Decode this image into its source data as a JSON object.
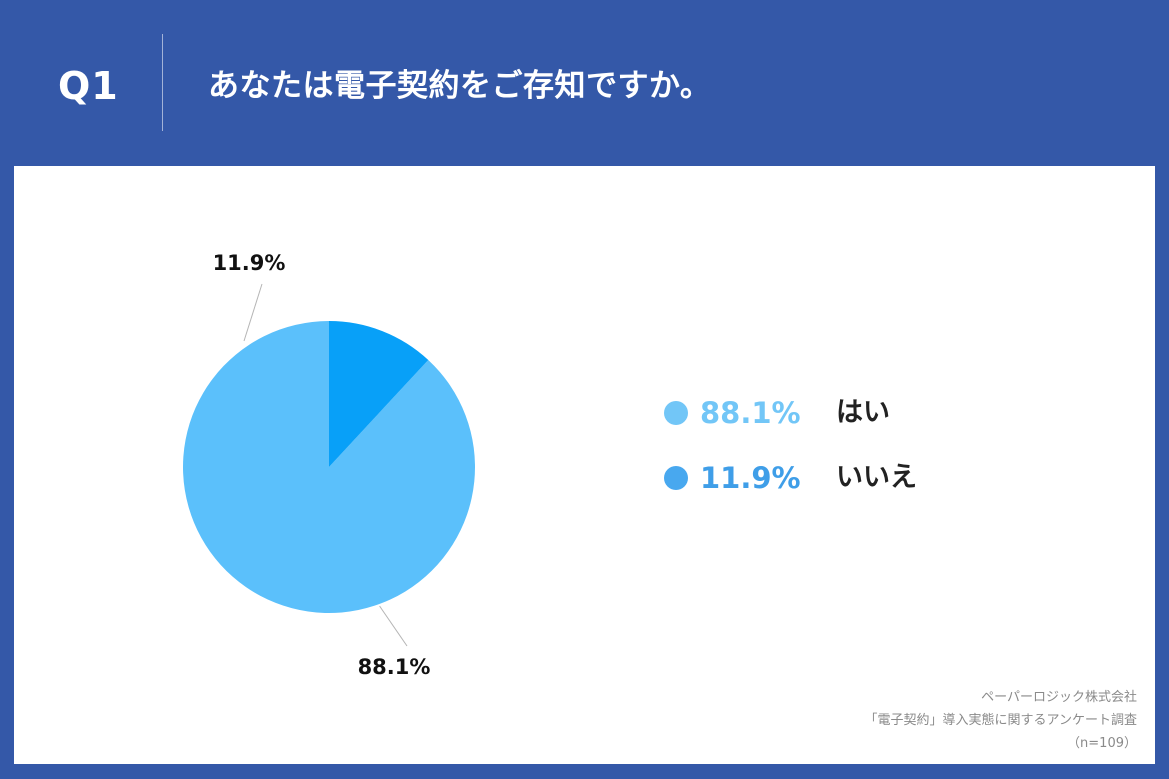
{
  "header": {
    "question_no": "Q1",
    "question_text": "あなたは電子契約をご存知ですか。",
    "background_color": "#3458a8"
  },
  "chart_data": {
    "type": "pie",
    "labels": [
      "はい",
      "いいえ"
    ],
    "values": [
      88.1,
      11.9
    ],
    "value_labels": [
      "88.1%",
      "11.9%"
    ],
    "colors": [
      "#5bc0fb",
      "#08a0f8"
    ],
    "legend_dot_colors": [
      "#72c6f7",
      "#48a8ef"
    ],
    "legend_text_colors": [
      "#72c6f7",
      "#3f9ee8"
    ],
    "start_angle": "12 o'clock",
    "direction": "counterclockwise",
    "legend_position": "right"
  },
  "legend": [
    {
      "pct": "88.1%",
      "label": "はい"
    },
    {
      "pct": "11.9%",
      "label": "いいえ"
    }
  ],
  "source": {
    "line1": "ペーパーロジック株式会社",
    "line2": "「電子契約」導入実態に関するアンケート調査",
    "line3": "（n=109）"
  }
}
